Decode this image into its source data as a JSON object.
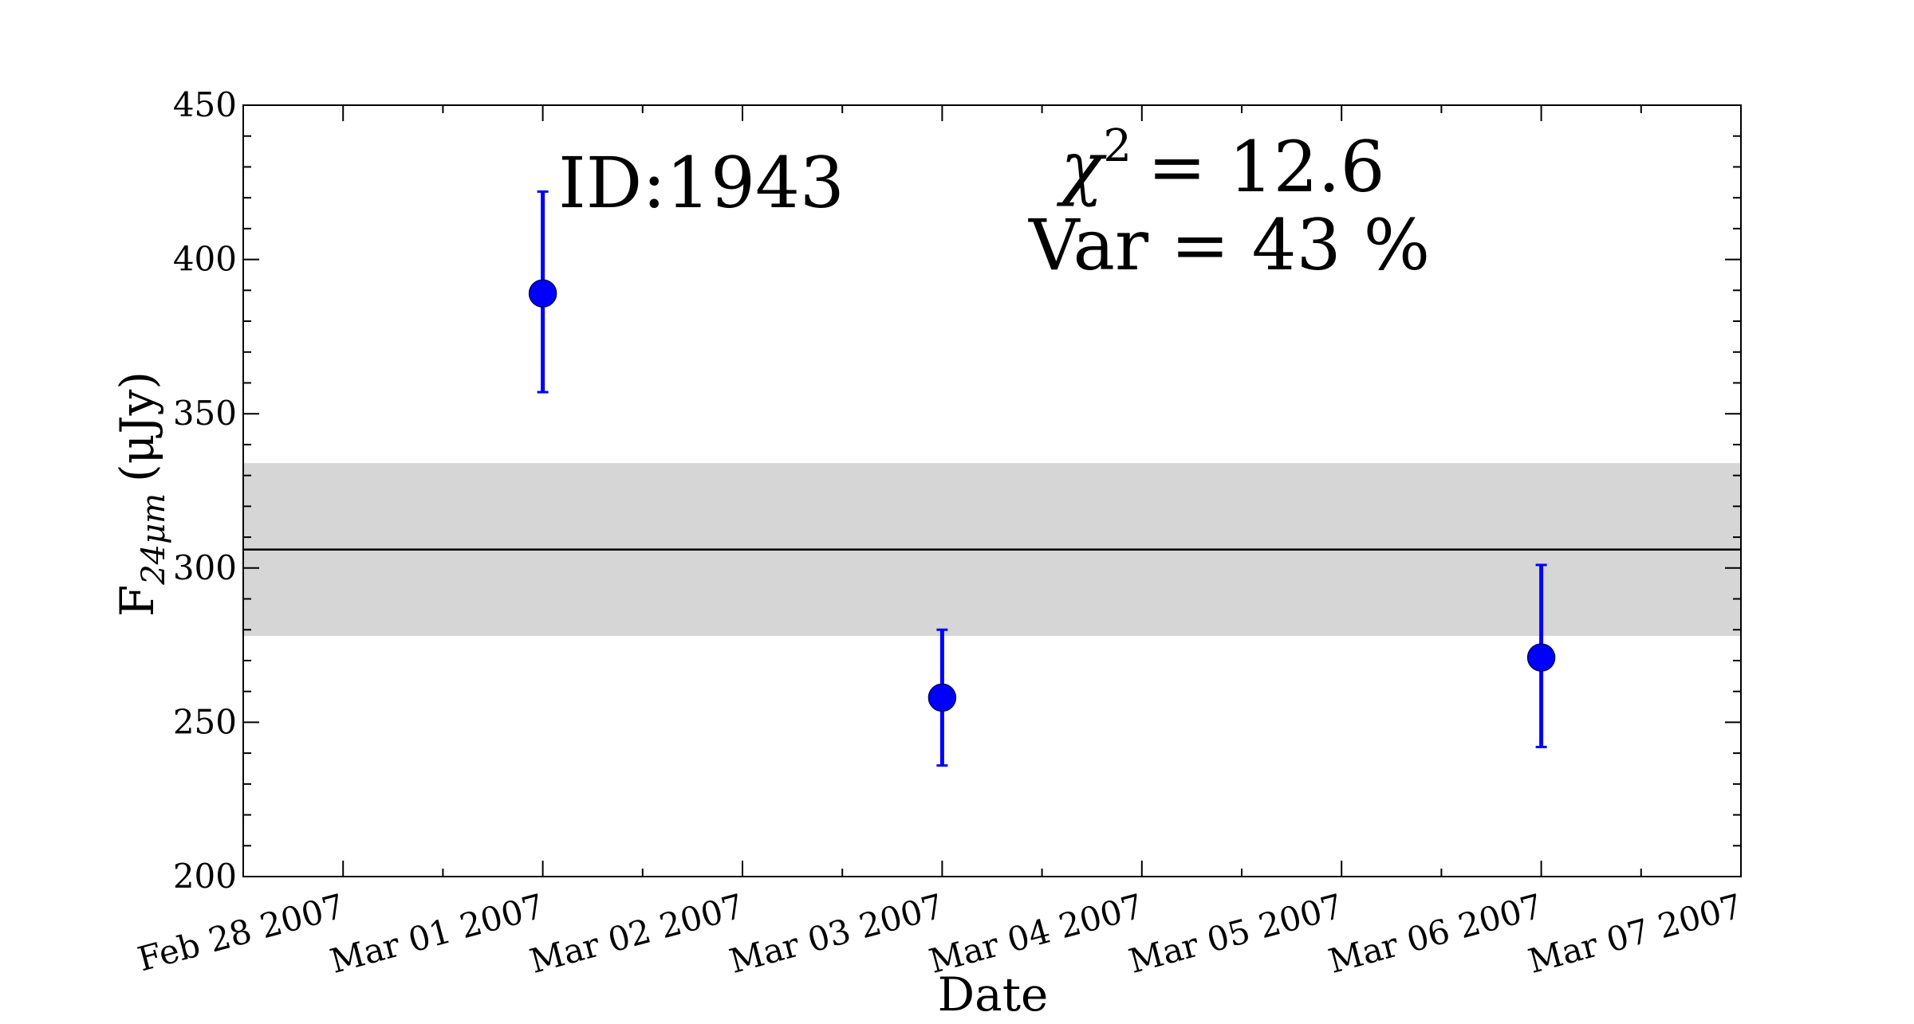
{
  "chart_data": {
    "type": "scatter",
    "title": "",
    "xlabel": "Date",
    "ylabel": "F",
    "ylabel_sub": "24μm",
    "ylabel_unit": "(μJy)",
    "x_tick_labels": [
      "Feb 28 2007",
      "Mar 01 2007",
      "Mar 02 2007",
      "Mar 03 2007",
      "Mar 04 2007",
      "Mar 05 2007",
      "Mar 06 2007",
      "Mar 07 2007"
    ],
    "xlim": [
      "2007-02-27T12:00",
      "2007-03-07T00:00"
    ],
    "ylim": [
      200,
      450
    ],
    "y_ticks": [
      "200",
      "250",
      "300",
      "350",
      "400",
      "450"
    ],
    "points": [
      {
        "x": "2007-03-01T00:00",
        "y": 389,
        "yerr_low": 357,
        "yerr_high": 422
      },
      {
        "x": "2007-03-03T00:00",
        "y": 258,
        "yerr_low": 236,
        "yerr_high": 280
      },
      {
        "x": "2007-03-06T00:00",
        "y": 271,
        "yerr_low": 242,
        "yerr_high": 301
      }
    ],
    "mean_line": 306,
    "band": [
      278,
      334
    ],
    "grid": false,
    "annotations": {
      "id": "ID:1943",
      "chi": "χ",
      "chi_exp": "2",
      "chi_val": "= 12.6",
      "var": "Var = 43 %"
    },
    "colors": {
      "points": "#0000ff",
      "band": "#d6d6d6",
      "line": "#000000"
    }
  }
}
